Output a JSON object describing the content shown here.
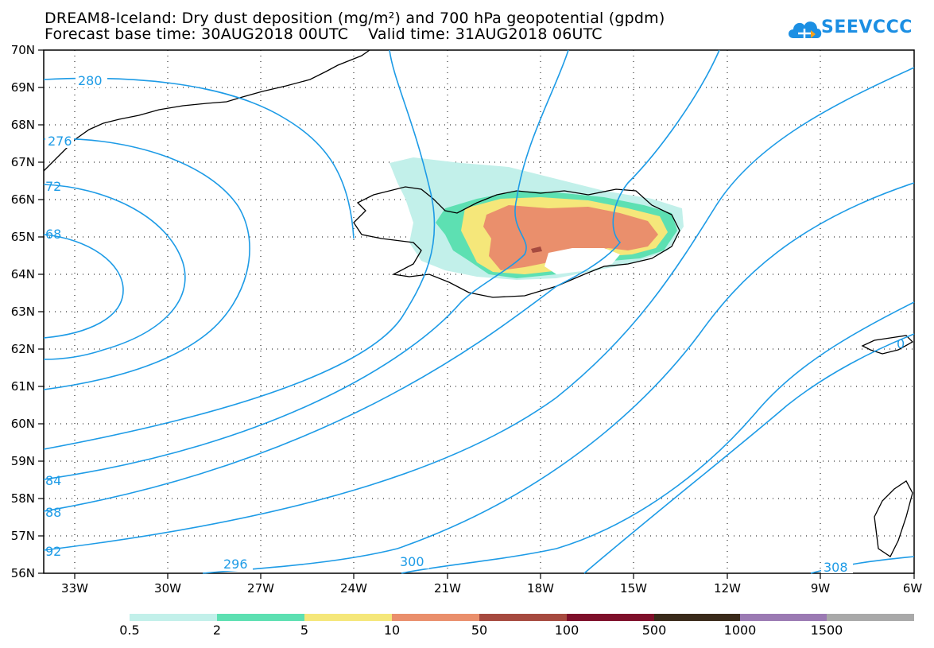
{
  "title_line1": "DREAM8-Iceland: Dry dust deposition (mg/m²) and 700 hPa geopotential (gpdm)",
  "title_line2": "Forecast base time: 30AUG2018 00UTC    Valid time: 31AUG2018 06UTC",
  "logo_text": "SEEVCCC",
  "lat_labels": [
    "70N",
    "69N",
    "68N",
    "67N",
    "66N",
    "65N",
    "64N",
    "63N",
    "62N",
    "61N",
    "60N",
    "59N",
    "58N",
    "57N",
    "56N"
  ],
  "lon_labels": [
    "33W",
    "30W",
    "27W",
    "24W",
    "21W",
    "18W",
    "15W",
    "12W",
    "9W",
    "6W"
  ],
  "contour_labels": {
    "c280": "280",
    "c276": "276",
    "c272": "72",
    "c268": "68",
    "c284": "84",
    "c288": "88",
    "c292": "92",
    "c296": "296",
    "c300": "300",
    "c304": "0",
    "c308": "308"
  },
  "colorbar": {
    "labels": [
      "0.5",
      "2",
      "5",
      "10",
      "50",
      "100",
      "500",
      "1000",
      "1500"
    ],
    "colors": [
      "#c2f0ea",
      "#5de0b2",
      "#f5e77a",
      "#ea8f6c",
      "#a64a3f",
      "#7e0f2a",
      "#3a2a1a",
      "#9b7ab3",
      "#a9a9a9"
    ]
  },
  "map_data": {
    "region": "Iceland and North Atlantic",
    "lat_range": [
      56,
      70
    ],
    "lon_range": [
      -34,
      -6
    ],
    "contour_color": "#1d9be6",
    "field": "Dry dust deposition (mg/m²)",
    "contour_field": "700 hPa geopotential (gpdm)"
  }
}
